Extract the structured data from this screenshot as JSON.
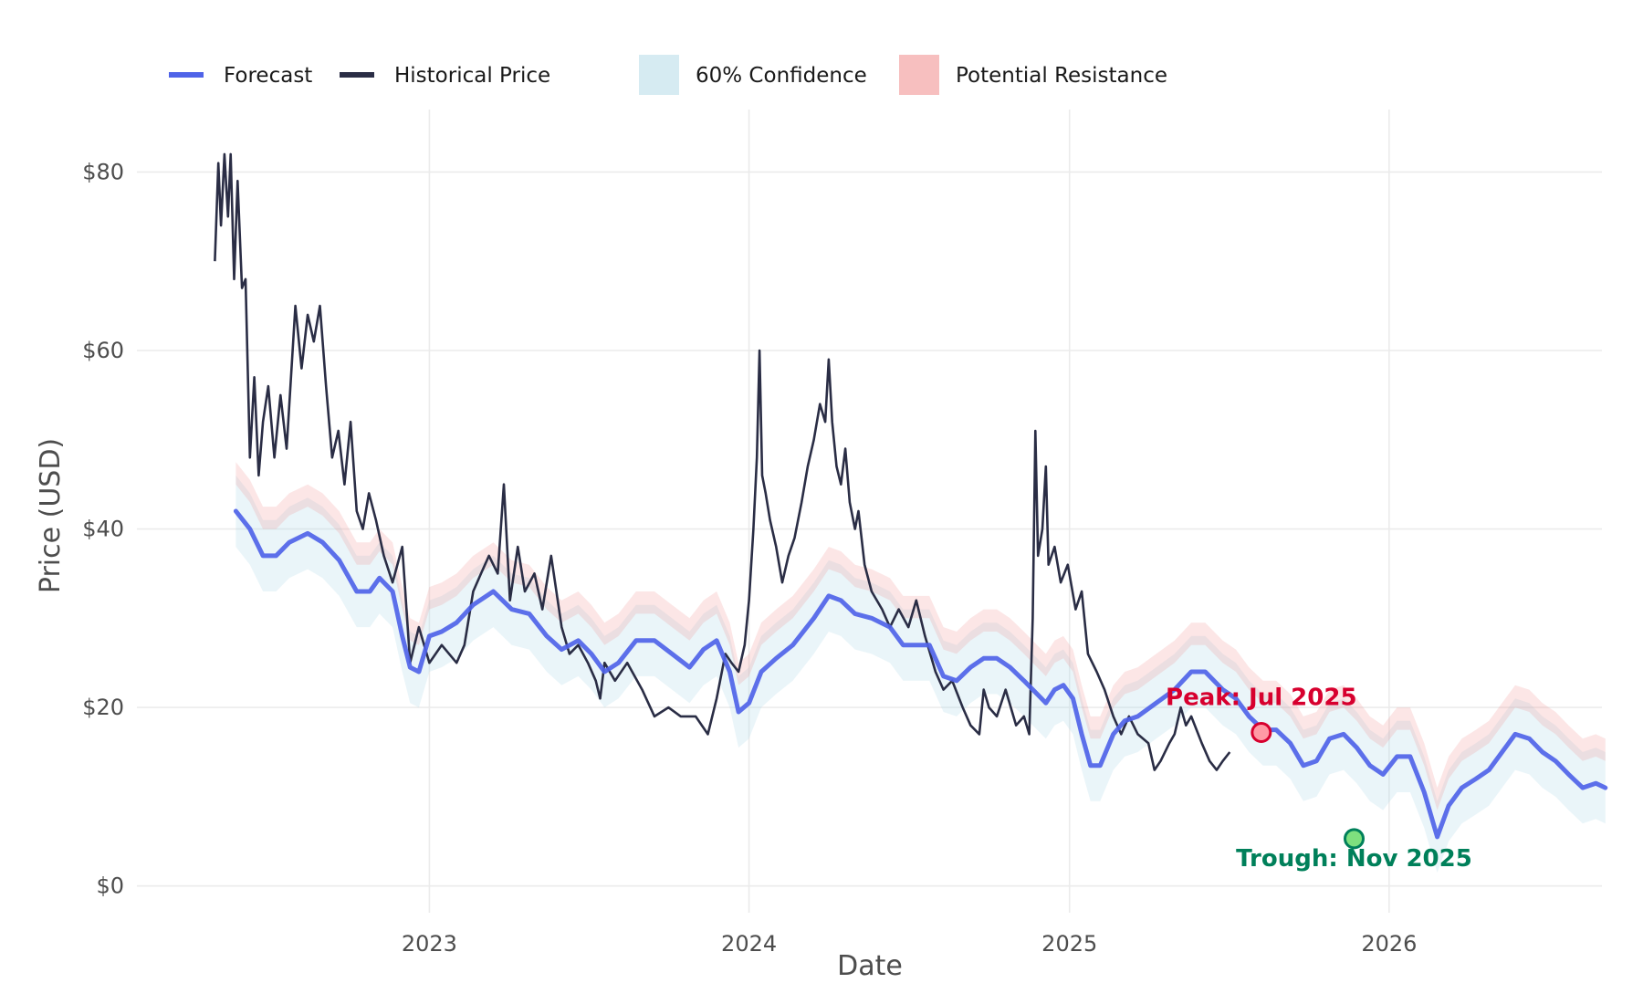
{
  "chart_data": {
    "type": "line",
    "title": "",
    "xlabel": "Date",
    "ylabel": "Price (USD)",
    "x_range": [
      "2022-02-01",
      "2026-09-01"
    ],
    "ylim": [
      -3,
      87
    ],
    "y_ticks": [
      0,
      20,
      40,
      60,
      80
    ],
    "y_tick_labels": [
      "$0",
      "$20",
      "$40",
      "$60",
      "$80"
    ],
    "x_ticks": [
      "2023-01-01",
      "2024-01-01",
      "2025-01-01",
      "2026-01-01"
    ],
    "x_tick_labels": [
      "2023",
      "2024",
      "2025",
      "2026"
    ],
    "grid": true,
    "legend_position": "top",
    "legend": [
      {
        "label": "Forecast",
        "kind": "line",
        "color": "#4f63e8"
      },
      {
        "label": "Historical Price",
        "kind": "line",
        "color": "#2a2d45"
      },
      {
        "label": "60% Confidence",
        "kind": "fill",
        "color": "#add8e6"
      },
      {
        "label": "Potential Resistance",
        "kind": "fill",
        "color": "#f08080"
      }
    ],
    "series": [
      {
        "name": "Historical Price",
        "color": "#2a2d45",
        "points": [
          [
            "2022-05-01",
            70
          ],
          [
            "2022-05-05",
            81
          ],
          [
            "2022-05-08",
            74
          ],
          [
            "2022-05-12",
            82
          ],
          [
            "2022-05-16",
            75
          ],
          [
            "2022-05-19",
            82
          ],
          [
            "2022-05-23",
            68
          ],
          [
            "2022-05-27",
            79
          ],
          [
            "2022-06-01",
            67
          ],
          [
            "2022-06-05",
            68
          ],
          [
            "2022-06-10",
            48
          ],
          [
            "2022-06-15",
            57
          ],
          [
            "2022-06-20",
            46
          ],
          [
            "2022-06-25",
            52
          ],
          [
            "2022-07-01",
            56
          ],
          [
            "2022-07-08",
            48
          ],
          [
            "2022-07-15",
            55
          ],
          [
            "2022-07-22",
            49
          ],
          [
            "2022-08-01",
            65
          ],
          [
            "2022-08-08",
            58
          ],
          [
            "2022-08-15",
            64
          ],
          [
            "2022-08-22",
            61
          ],
          [
            "2022-08-29",
            65
          ],
          [
            "2022-09-05",
            56
          ],
          [
            "2022-09-12",
            48
          ],
          [
            "2022-09-19",
            51
          ],
          [
            "2022-09-26",
            45
          ],
          [
            "2022-10-03",
            52
          ],
          [
            "2022-10-10",
            42
          ],
          [
            "2022-10-17",
            40
          ],
          [
            "2022-10-24",
            44
          ],
          [
            "2022-11-01",
            41
          ],
          [
            "2022-11-10",
            37
          ],
          [
            "2022-11-20",
            34
          ],
          [
            "2022-12-01",
            38
          ],
          [
            "2022-12-10",
            25
          ],
          [
            "2022-12-20",
            29
          ],
          [
            "2023-01-01",
            25
          ],
          [
            "2023-01-15",
            27
          ],
          [
            "2023-02-01",
            25
          ],
          [
            "2023-02-10",
            27
          ],
          [
            "2023-02-20",
            33
          ],
          [
            "2023-03-01",
            35
          ],
          [
            "2023-03-10",
            37
          ],
          [
            "2023-03-20",
            35
          ],
          [
            "2023-03-27",
            45
          ],
          [
            "2023-04-03",
            32
          ],
          [
            "2023-04-12",
            38
          ],
          [
            "2023-04-20",
            33
          ],
          [
            "2023-05-01",
            35
          ],
          [
            "2023-05-10",
            31
          ],
          [
            "2023-05-20",
            37
          ],
          [
            "2023-06-01",
            29
          ],
          [
            "2023-06-10",
            26
          ],
          [
            "2023-06-20",
            27
          ],
          [
            "2023-07-01",
            25
          ],
          [
            "2023-07-10",
            23
          ],
          [
            "2023-07-15",
            21
          ],
          [
            "2023-07-20",
            25
          ],
          [
            "2023-08-01",
            23
          ],
          [
            "2023-08-15",
            25
          ],
          [
            "2023-09-01",
            22
          ],
          [
            "2023-09-15",
            19
          ],
          [
            "2023-10-01",
            20
          ],
          [
            "2023-10-15",
            19
          ],
          [
            "2023-11-01",
            19
          ],
          [
            "2023-11-15",
            17
          ],
          [
            "2023-11-25",
            21
          ],
          [
            "2023-12-05",
            26
          ],
          [
            "2023-12-12",
            25
          ],
          [
            "2023-12-20",
            24
          ],
          [
            "2023-12-27",
            27
          ],
          [
            "2024-01-01",
            32
          ],
          [
            "2024-01-06",
            40
          ],
          [
            "2024-01-10",
            48
          ],
          [
            "2024-01-13",
            60
          ],
          [
            "2024-01-16",
            46
          ],
          [
            "2024-01-20",
            44
          ],
          [
            "2024-01-25",
            41
          ],
          [
            "2024-02-01",
            38
          ],
          [
            "2024-02-08",
            34
          ],
          [
            "2024-02-15",
            37
          ],
          [
            "2024-02-22",
            39
          ],
          [
            "2024-03-01",
            43
          ],
          [
            "2024-03-08",
            47
          ],
          [
            "2024-03-15",
            50
          ],
          [
            "2024-03-22",
            54
          ],
          [
            "2024-03-28",
            52
          ],
          [
            "2024-04-01",
            59
          ],
          [
            "2024-04-05",
            52
          ],
          [
            "2024-04-10",
            47
          ],
          [
            "2024-04-15",
            45
          ],
          [
            "2024-04-20",
            49
          ],
          [
            "2024-04-25",
            43
          ],
          [
            "2024-05-01",
            40
          ],
          [
            "2024-05-05",
            42
          ],
          [
            "2024-05-12",
            36
          ],
          [
            "2024-05-20",
            33
          ],
          [
            "2024-06-01",
            31
          ],
          [
            "2024-06-10",
            29
          ],
          [
            "2024-06-20",
            31
          ],
          [
            "2024-07-01",
            29
          ],
          [
            "2024-07-10",
            32
          ],
          [
            "2024-07-20",
            28
          ],
          [
            "2024-08-01",
            24
          ],
          [
            "2024-08-10",
            22
          ],
          [
            "2024-08-20",
            23
          ],
          [
            "2024-09-01",
            20
          ],
          [
            "2024-09-10",
            18
          ],
          [
            "2024-09-20",
            17
          ],
          [
            "2024-09-25",
            22
          ],
          [
            "2024-10-01",
            20
          ],
          [
            "2024-10-10",
            19
          ],
          [
            "2024-10-20",
            22
          ],
          [
            "2024-11-01",
            18
          ],
          [
            "2024-11-10",
            19
          ],
          [
            "2024-11-16",
            17
          ],
          [
            "2024-11-20",
            30
          ],
          [
            "2024-11-23",
            51
          ],
          [
            "2024-11-26",
            37
          ],
          [
            "2024-12-01",
            40
          ],
          [
            "2024-12-05",
            47
          ],
          [
            "2024-12-08",
            36
          ],
          [
            "2024-12-15",
            38
          ],
          [
            "2024-12-22",
            34
          ],
          [
            "2024-12-30",
            36
          ],
          [
            "2025-01-08",
            31
          ],
          [
            "2025-01-15",
            33
          ],
          [
            "2025-01-22",
            26
          ],
          [
            "2025-02-01",
            24
          ],
          [
            "2025-02-10",
            22
          ],
          [
            "2025-02-20",
            19
          ],
          [
            "2025-03-01",
            17
          ],
          [
            "2025-03-10",
            19
          ],
          [
            "2025-03-20",
            17
          ],
          [
            "2025-04-01",
            16
          ],
          [
            "2025-04-08",
            13
          ],
          [
            "2025-04-15",
            14
          ],
          [
            "2025-04-25",
            16
          ],
          [
            "2025-05-01",
            17
          ],
          [
            "2025-05-08",
            20
          ],
          [
            "2025-05-14",
            18
          ],
          [
            "2025-05-20",
            19
          ],
          [
            "2025-06-01",
            16
          ],
          [
            "2025-06-10",
            14
          ],
          [
            "2025-06-18",
            13
          ],
          [
            "2025-06-25",
            14
          ],
          [
            "2025-07-03",
            15
          ]
        ]
      },
      {
        "name": "Forecast",
        "color": "#4f63e8",
        "points": [
          [
            "2022-05-25",
            42
          ],
          [
            "2022-06-10",
            40
          ],
          [
            "2022-06-25",
            37
          ],
          [
            "2022-07-10",
            37
          ],
          [
            "2022-07-25",
            38.5
          ],
          [
            "2022-08-15",
            39.5
          ],
          [
            "2022-09-01",
            38.5
          ],
          [
            "2022-09-20",
            36.5
          ],
          [
            "2022-10-10",
            33
          ],
          [
            "2022-10-25",
            33
          ],
          [
            "2022-11-05",
            34.5
          ],
          [
            "2022-11-20",
            33
          ],
          [
            "2022-12-01",
            28
          ],
          [
            "2022-12-10",
            24.5
          ],
          [
            "2022-12-20",
            24
          ],
          [
            "2023-01-01",
            28
          ],
          [
            "2023-01-15",
            28.5
          ],
          [
            "2023-02-01",
            29.5
          ],
          [
            "2023-02-20",
            31.5
          ],
          [
            "2023-03-15",
            33
          ],
          [
            "2023-04-05",
            31
          ],
          [
            "2023-04-25",
            30.5
          ],
          [
            "2023-05-15",
            28
          ],
          [
            "2023-06-01",
            26.5
          ],
          [
            "2023-06-20",
            27.5
          ],
          [
            "2023-07-05",
            26
          ],
          [
            "2023-07-20",
            24
          ],
          [
            "2023-08-05",
            25
          ],
          [
            "2023-08-25",
            27.5
          ],
          [
            "2023-09-15",
            27.5
          ],
          [
            "2023-10-05",
            26
          ],
          [
            "2023-10-25",
            24.5
          ],
          [
            "2023-11-10",
            26.5
          ],
          [
            "2023-11-25",
            27.5
          ],
          [
            "2023-12-10",
            24
          ],
          [
            "2023-12-20",
            19.5
          ],
          [
            "2024-01-01",
            20.5
          ],
          [
            "2024-01-15",
            24
          ],
          [
            "2024-02-01",
            25.5
          ],
          [
            "2024-02-20",
            27
          ],
          [
            "2024-03-15",
            30
          ],
          [
            "2024-04-01",
            32.5
          ],
          [
            "2024-04-15",
            32
          ],
          [
            "2024-05-01",
            30.5
          ],
          [
            "2024-05-20",
            30
          ],
          [
            "2024-06-10",
            29
          ],
          [
            "2024-06-25",
            27
          ],
          [
            "2024-07-10",
            27
          ],
          [
            "2024-07-25",
            27
          ],
          [
            "2024-08-10",
            23.5
          ],
          [
            "2024-08-25",
            23
          ],
          [
            "2024-09-10",
            24.5
          ],
          [
            "2024-09-25",
            25.5
          ],
          [
            "2024-10-10",
            25.5
          ],
          [
            "2024-10-25",
            24.5
          ],
          [
            "2024-11-10",
            23
          ],
          [
            "2024-11-25",
            21.5
          ],
          [
            "2024-12-05",
            20.5
          ],
          [
            "2024-12-15",
            22
          ],
          [
            "2024-12-25",
            22.5
          ],
          [
            "2025-01-05",
            21
          ],
          [
            "2025-01-15",
            17
          ],
          [
            "2025-01-25",
            13.5
          ],
          [
            "2025-02-05",
            13.5
          ],
          [
            "2025-02-20",
            17
          ],
          [
            "2025-03-05",
            18.5
          ],
          [
            "2025-03-20",
            19
          ],
          [
            "2025-04-10",
            20.5
          ],
          [
            "2025-05-01",
            22
          ],
          [
            "2025-05-20",
            24
          ],
          [
            "2025-06-05",
            24
          ],
          [
            "2025-06-25",
            22
          ],
          [
            "2025-07-10",
            21
          ],
          [
            "2025-07-25",
            19
          ],
          [
            "2025-08-10",
            17.5
          ],
          [
            "2025-08-25",
            17.5
          ],
          [
            "2025-09-10",
            16
          ],
          [
            "2025-09-25",
            13.5
          ],
          [
            "2025-10-10",
            14
          ],
          [
            "2025-10-25",
            16.5
          ],
          [
            "2025-11-10",
            17
          ],
          [
            "2025-11-25",
            15.5
          ],
          [
            "2025-12-10",
            13.5
          ],
          [
            "2025-12-25",
            12.5
          ],
          [
            "2026-01-10",
            14.5
          ],
          [
            "2026-01-25",
            14.5
          ],
          [
            "2026-02-10",
            10.5
          ],
          [
            "2026-02-25",
            5.5
          ],
          [
            "2026-03-10",
            9
          ],
          [
            "2026-03-25",
            11
          ],
          [
            "2026-04-10",
            12
          ],
          [
            "2026-04-25",
            13
          ],
          [
            "2026-05-10",
            15
          ],
          [
            "2026-05-25",
            17
          ],
          [
            "2026-06-10",
            16.5
          ],
          [
            "2026-06-25",
            15
          ],
          [
            "2026-07-10",
            14
          ],
          [
            "2026-07-25",
            12.5
          ],
          [
            "2026-08-10",
            11
          ],
          [
            "2026-08-25",
            11.5
          ],
          [
            "2026-09-05",
            11
          ]
        ]
      }
    ],
    "bands": [
      {
        "name": "60% Confidence",
        "color": "#add8e6",
        "opacity": 0.25,
        "lower_offset": -4,
        "upper_offset": 4
      },
      {
        "name": "Potential Resistance",
        "color": "#f08080",
        "opacity": 0.2,
        "lower_offset": 3,
        "upper_offset": 5.5
      }
    ],
    "annotations": [
      {
        "text": "Peak: Jul 2025",
        "x": "2025-08-08",
        "y": 17.2,
        "color": "#d7002e",
        "marker_fill": "#ff9aa5",
        "position": "above"
      },
      {
        "text": "Trough: Nov 2025",
        "x": "2025-11-22",
        "y": 5.3,
        "color": "#00805a",
        "marker_fill": "#7ee07e",
        "position": "below"
      }
    ]
  }
}
